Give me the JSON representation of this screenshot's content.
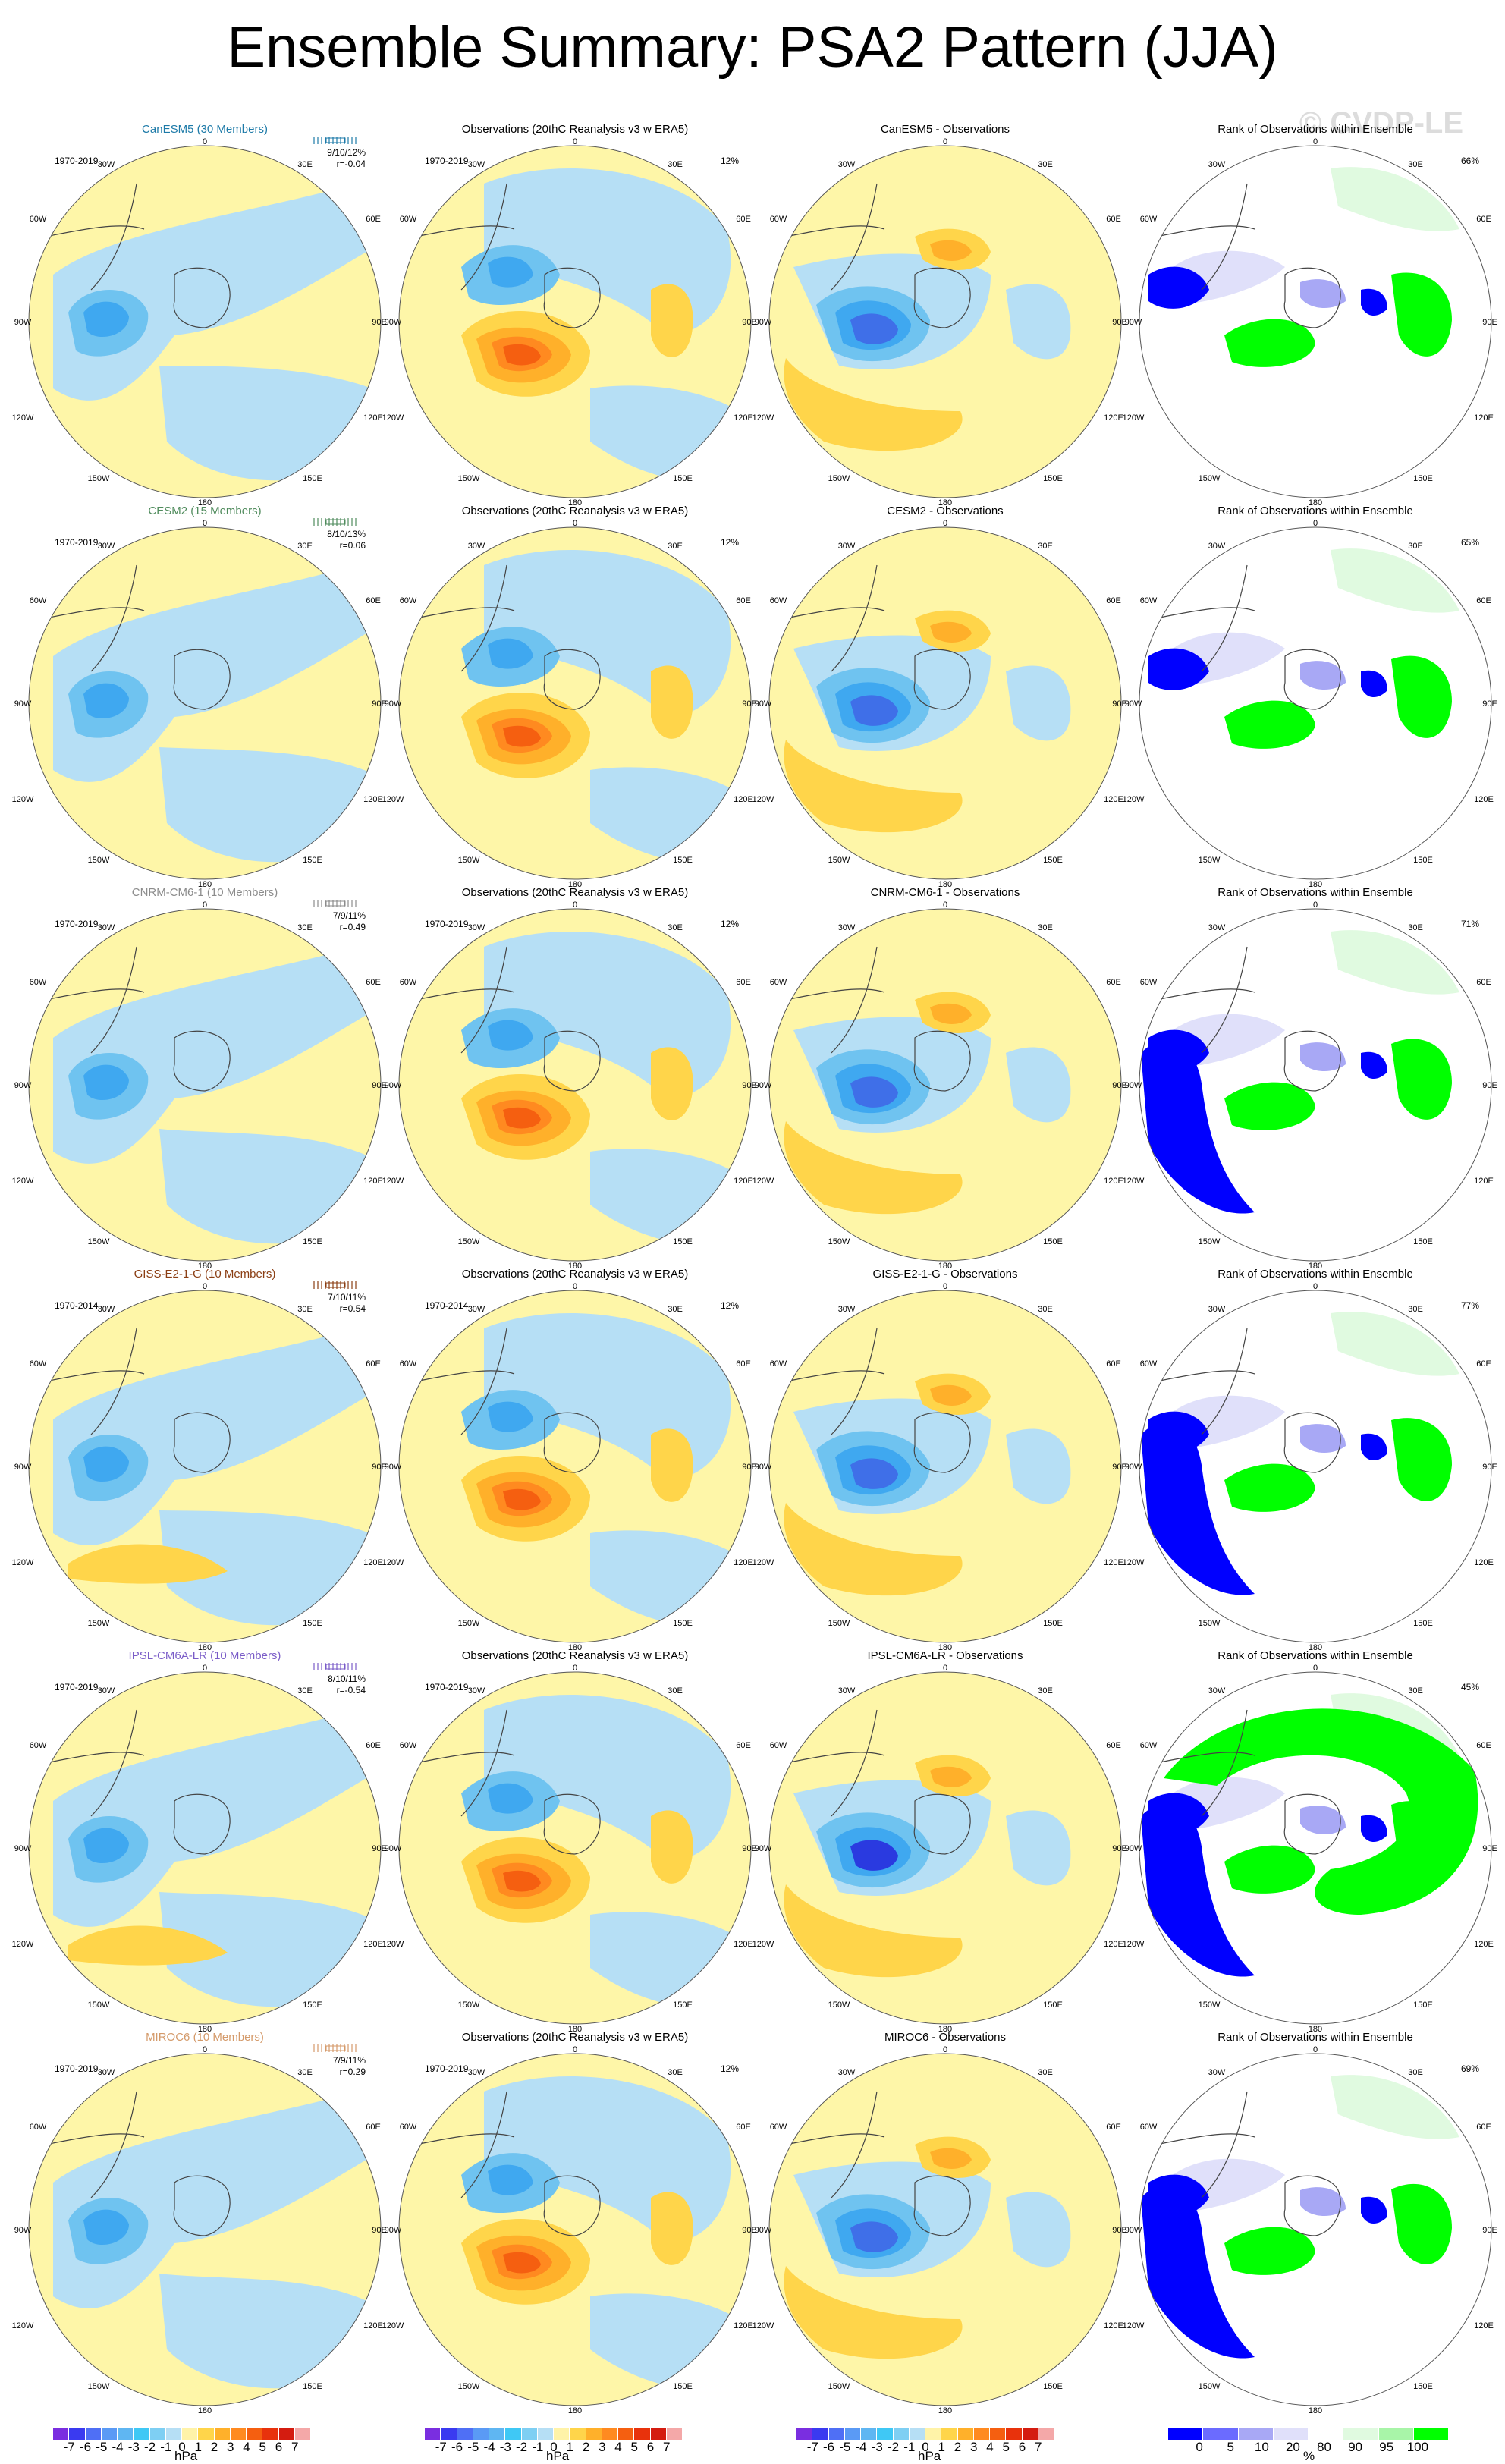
{
  "title": "Ensemble Summary: PSA2 Pattern (JJA)",
  "watermark": "© CVDP-LE",
  "column_titles": {
    "obs": "Observations (20thC Reanalysis v3 w ERA5)",
    "rank": "Rank of Observations within Ensemble"
  },
  "rows": [
    {
      "model": "CanESM5 (30 Members)",
      "model_color": "#1d7aa8",
      "years_model": "1970-2019",
      "model_stat": "9/10/12%",
      "model_r": "r=-0.04",
      "years_obs": "1970-2019",
      "obs_stat": "12%",
      "diff_title": "CanESM5 - Observations",
      "rank_stat": "66%"
    },
    {
      "model": "CESM2 (15 Members)",
      "model_color": "#4f8b5c",
      "years_model": "1970-2019",
      "model_stat": "8/10/13%",
      "model_r": "r=0.06",
      "years_obs": "",
      "obs_stat": "12%",
      "diff_title": "CESM2 - Observations",
      "rank_stat": "65%"
    },
    {
      "model": "CNRM-CM6-1 (10 Members)",
      "model_color": "#8c8c8c",
      "years_model": "1970-2019",
      "model_stat": "7/9/11%",
      "model_r": "r=0.49",
      "years_obs": "1970-2019",
      "obs_stat": "12%",
      "diff_title": "CNRM-CM6-1 - Observations",
      "rank_stat": "71%"
    },
    {
      "model": "GISS-E2-1-G (10 Members)",
      "model_color": "#8a3d12",
      "years_model": "1970-2014",
      "model_stat": "7/10/11%",
      "model_r": "r=0.54",
      "years_obs": "1970-2014",
      "obs_stat": "12%",
      "diff_title": "GISS-E2-1-G - Observations",
      "rank_stat": "77%"
    },
    {
      "model": "IPSL-CM6A-LR (10 Members)",
      "model_color": "#7a5cc8",
      "years_model": "1970-2019",
      "model_stat": "8/10/11%",
      "model_r": "r=-0.54",
      "years_obs": "1970-2019",
      "obs_stat": "",
      "diff_title": "IPSL-CM6A-LR - Observations",
      "rank_stat": "45%"
    },
    {
      "model": "MIROC6 (10 Members)",
      "model_color": "#d49a6a",
      "years_model": "1970-2019",
      "model_stat": "7/9/11%",
      "model_r": "r=0.29",
      "years_obs": "1970-2019",
      "obs_stat": "12%",
      "diff_title": "MIROC6 - Observations",
      "rank_stat": "69%"
    }
  ],
  "map_labels": {
    "top": "0",
    "bottom": "180",
    "tl": "30W",
    "tr": "30E",
    "ml": "60W",
    "mr": "60E",
    "l": "90W",
    "r": "90E",
    "bl": "120W",
    "br": "120E",
    "lbl": "150W",
    "lbr": "150E"
  },
  "colorbar_hpa": {
    "labels": [
      "-7",
      "-6",
      "-5",
      "-4",
      "-3",
      "-2",
      "-1",
      "0",
      "1",
      "2",
      "3",
      "4",
      "5",
      "6",
      "7"
    ],
    "colors": [
      "#7a2ee0",
      "#3a3af0",
      "#4f6ff5",
      "#5a9af5",
      "#5fb6f2",
      "#3fc8f5",
      "#7ecff3",
      "#b6dff5",
      "#fff3a8",
      "#ffd54a",
      "#ffb02a",
      "#ff8a20",
      "#f55f10",
      "#e8320c",
      "#d41c10",
      "#f4a8a8"
    ],
    "units": "hPa"
  },
  "colorbar_rank": {
    "labels": [
      "0",
      "5",
      "10",
      "20",
      "80",
      "90",
      "95",
      "100"
    ],
    "colors": [
      "#0000ff",
      "#6b6bff",
      "#a8a8f5",
      "#e0e0fa",
      "#ffffff",
      "#e0fae0",
      "#a8f5a8",
      "#00ff00"
    ],
    "units": "%"
  },
  "palette": {
    "land_line": "#444444",
    "pos1": "#fef6a8",
    "pos2": "#ffd54a",
    "pos3": "#ffb02a",
    "pos4": "#ff8a20",
    "pos5": "#f55f10",
    "neg1": "#b6dff5",
    "neg2": "#6fc3f0",
    "neg3": "#3fa8f0",
    "neg4": "#3f6fe8",
    "neg5": "#2a3ae0",
    "rank_lo": "#0000ff",
    "rank_lo2": "#a8a8f5",
    "rank_lo3": "#e0e0fa",
    "rank_hi3": "#e0fae0",
    "rank_hi2": "#a8f5a8",
    "rank_hi": "#00ff00"
  }
}
